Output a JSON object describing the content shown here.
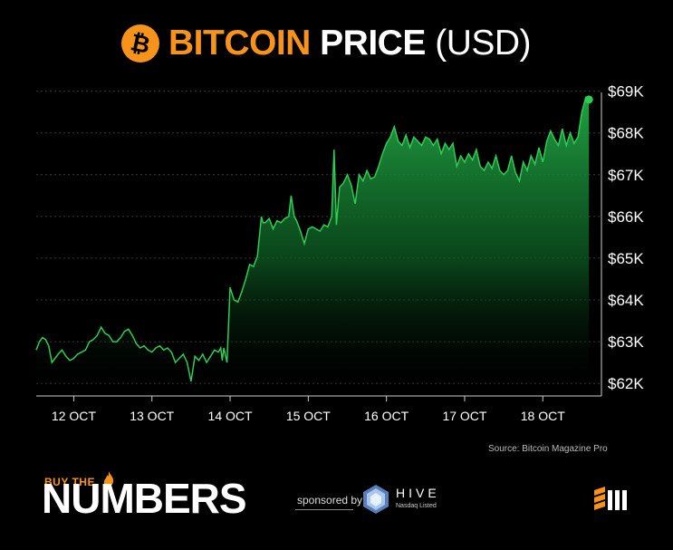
{
  "title": {
    "accent": "BITCOIN",
    "main": "PRICE",
    "unit": "(USD)"
  },
  "colors": {
    "brand": "#f7931a",
    "line": "#2ecc52",
    "background": "#000000"
  },
  "chart_data": {
    "type": "area",
    "x_tick_labels": [
      "12 OCT",
      "13 OCT",
      "14 OCT",
      "15 OCT",
      "16 OCT",
      "17 OCT",
      "18 OCT"
    ],
    "y_tick_labels": [
      "$62K",
      "$63K",
      "$64K",
      "$65K",
      "$66K",
      "$67K",
      "$68K",
      "$69K"
    ],
    "y_ticks": [
      62000,
      63000,
      64000,
      65000,
      66000,
      67000,
      68000,
      69000
    ],
    "ylim": [
      61700,
      69100
    ],
    "xlim": [
      11.52,
      18.75
    ],
    "grid": true,
    "series": [
      {
        "x": [
          11.52,
          11.56,
          11.6,
          11.64,
          11.68,
          11.72,
          11.76,
          11.8,
          11.85,
          11.9,
          11.95,
          12.0,
          12.05,
          12.1,
          12.15,
          12.2,
          12.25,
          12.3,
          12.35,
          12.4,
          12.45,
          12.5,
          12.55,
          12.6,
          12.65,
          12.7,
          12.75,
          12.8,
          12.85,
          12.9,
          12.95,
          13.0,
          13.05,
          13.1,
          13.15,
          13.2,
          13.25,
          13.3,
          13.35,
          13.4,
          13.45,
          13.5,
          13.55,
          13.6,
          13.65,
          13.7,
          13.75,
          13.8,
          13.85,
          13.88,
          13.9,
          13.92,
          13.96,
          14.0,
          14.05,
          14.1,
          14.15,
          14.2,
          14.25,
          14.3,
          14.35,
          14.4,
          14.42,
          14.45,
          14.5,
          14.55,
          14.6,
          14.65,
          14.7,
          14.75,
          14.78,
          14.82,
          14.85,
          14.9,
          14.95,
          15.0,
          15.05,
          15.1,
          15.15,
          15.2,
          15.25,
          15.3,
          15.33,
          15.36,
          15.4,
          15.45,
          15.5,
          15.55,
          15.6,
          15.65,
          15.7,
          15.75,
          15.8,
          15.85,
          15.9,
          15.95,
          16.0,
          16.05,
          16.1,
          16.15,
          16.2,
          16.25,
          16.3,
          16.35,
          16.4,
          16.45,
          16.5,
          16.55,
          16.6,
          16.65,
          16.7,
          16.75,
          16.8,
          16.85,
          16.9,
          16.95,
          17.0,
          17.05,
          17.1,
          17.15,
          17.2,
          17.25,
          17.3,
          17.35,
          17.4,
          17.45,
          17.5,
          17.55,
          17.6,
          17.65,
          17.7,
          17.75,
          17.8,
          17.85,
          17.9,
          17.95,
          18.0,
          18.05,
          18.1,
          18.15,
          18.2,
          18.25,
          18.3,
          18.35,
          18.4,
          18.45,
          18.5,
          18.55,
          18.59
        ],
        "y": [
          62800,
          63000,
          63100,
          63050,
          62900,
          62500,
          62600,
          62700,
          62800,
          62650,
          62550,
          62600,
          62700,
          62750,
          62800,
          63000,
          63050,
          63150,
          63350,
          63200,
          63150,
          63000,
          63000,
          63100,
          63250,
          63300,
          63150,
          62950,
          62850,
          62900,
          62800,
          62750,
          62850,
          62900,
          62800,
          62850,
          62750,
          62500,
          62600,
          62700,
          62500,
          62050,
          62650,
          62550,
          62700,
          62500,
          62650,
          62800,
          62750,
          62850,
          62550,
          62850,
          62500,
          64300,
          64000,
          63950,
          64200,
          64500,
          64850,
          64800,
          65050,
          66000,
          65850,
          65850,
          65950,
          65700,
          65900,
          65850,
          65950,
          66000,
          66500,
          66000,
          65900,
          65650,
          65350,
          65700,
          65750,
          65700,
          65650,
          65800,
          65750,
          66000,
          67600,
          65800,
          66700,
          66800,
          67000,
          66750,
          66300,
          67000,
          66850,
          67100,
          66900,
          66950,
          67200,
          67500,
          67750,
          67900,
          68150,
          67800,
          67700,
          67950,
          67650,
          67900,
          67800,
          67700,
          67900,
          67850,
          67700,
          67850,
          67500,
          67750,
          67600,
          67750,
          67200,
          67450,
          67300,
          67500,
          67350,
          67600,
          67200,
          67100,
          67300,
          67150,
          67450,
          67100,
          67000,
          67100,
          67450,
          67050,
          66850,
          67300,
          67100,
          67450,
          67250,
          67650,
          67300,
          67800,
          68050,
          67850,
          67700,
          68100,
          67700,
          68000,
          67750,
          67900,
          68500,
          68850,
          68800
        ]
      }
    ]
  },
  "source": "Source: Bitcoin Magazine Pro",
  "footer": {
    "buy_the": "BUY THE",
    "numbers": "NUMBERS",
    "sponsored_by": "sponsored by",
    "hive_name": "HIVE",
    "hive_sub": "Nasdaq Listed"
  },
  "icons": {
    "bitcoin": "bitcoin-icon",
    "flame": "flame-icon",
    "hive": "hive-hexagon-icon",
    "corner": "bitcoin-magazine-logo-icon"
  }
}
